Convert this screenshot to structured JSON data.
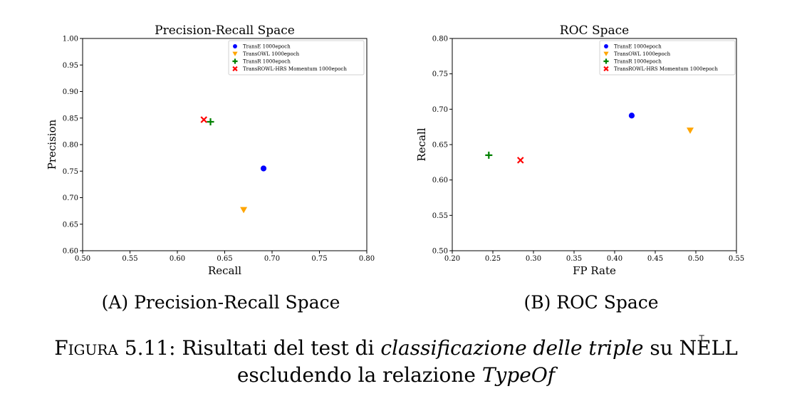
{
  "chart_data": [
    {
      "type": "scatter",
      "title": "Precision-Recall Space",
      "xlabel": "Recall",
      "ylabel": "Precision",
      "xlim": [
        0.5,
        0.8
      ],
      "ylim": [
        0.6,
        1.0
      ],
      "xticks": [
        "0.50",
        "0.55",
        "0.60",
        "0.65",
        "0.70",
        "0.75",
        "0.80"
      ],
      "yticks": [
        "0.60",
        "0.65",
        "0.70",
        "0.75",
        "0.80",
        "0.85",
        "0.90",
        "0.95",
        "1.00"
      ],
      "grid": false,
      "legend": "top-right",
      "series": [
        {
          "name": "TransE 1000epoch",
          "marker": "circle",
          "color": "#0000ff",
          "x": 0.691,
          "y": 0.755
        },
        {
          "name": "TransOWL 1000epoch",
          "marker": "triangle-down",
          "color": "#ffa500",
          "x": 0.67,
          "y": 0.677
        },
        {
          "name": "TransR 1000epoch",
          "marker": "plus",
          "color": "#008000",
          "x": 0.635,
          "y": 0.843
        },
        {
          "name": "TransROWL-HRS Momentum 1000epoch",
          "marker": "x",
          "color": "#ff0000",
          "x": 0.628,
          "y": 0.847
        }
      ]
    },
    {
      "type": "scatter",
      "title": "ROC Space",
      "xlabel": "FP Rate",
      "ylabel": "Recall",
      "xlim": [
        0.2,
        0.55
      ],
      "ylim": [
        0.5,
        0.8
      ],
      "xticks": [
        "0.20",
        "0.25",
        "0.30",
        "0.35",
        "0.40",
        "0.45",
        "0.50",
        "0.55"
      ],
      "yticks": [
        "0.50",
        "0.55",
        "0.60",
        "0.65",
        "0.70",
        "0.75",
        "0.80"
      ],
      "grid": false,
      "legend": "top-right",
      "series": [
        {
          "name": "TransE 1000epoch",
          "marker": "circle",
          "color": "#0000ff",
          "x": 0.421,
          "y": 0.691
        },
        {
          "name": "TransOWL 1000epoch",
          "marker": "triangle-down",
          "color": "#ffa500",
          "x": 0.493,
          "y": 0.67
        },
        {
          "name": "TransR 1000epoch",
          "marker": "plus",
          "color": "#008000",
          "x": 0.245,
          "y": 0.635
        },
        {
          "name": "TransROWL-HRS Momentum 1000epoch",
          "marker": "x",
          "color": "#ff0000",
          "x": 0.284,
          "y": 0.628
        }
      ]
    }
  ],
  "captions": {
    "a_label": "(A)",
    "a_text": "Precision-Recall Space",
    "b_label": "(B)",
    "b_text": "ROC Space",
    "figure_label": "Figura 5.11:",
    "part1": "Risultati del test di",
    "part2_italic": "classificazione delle triple",
    "part3": "su NELL",
    "part4": "escludendo la relazione",
    "part5_italic": "TypeOf"
  }
}
